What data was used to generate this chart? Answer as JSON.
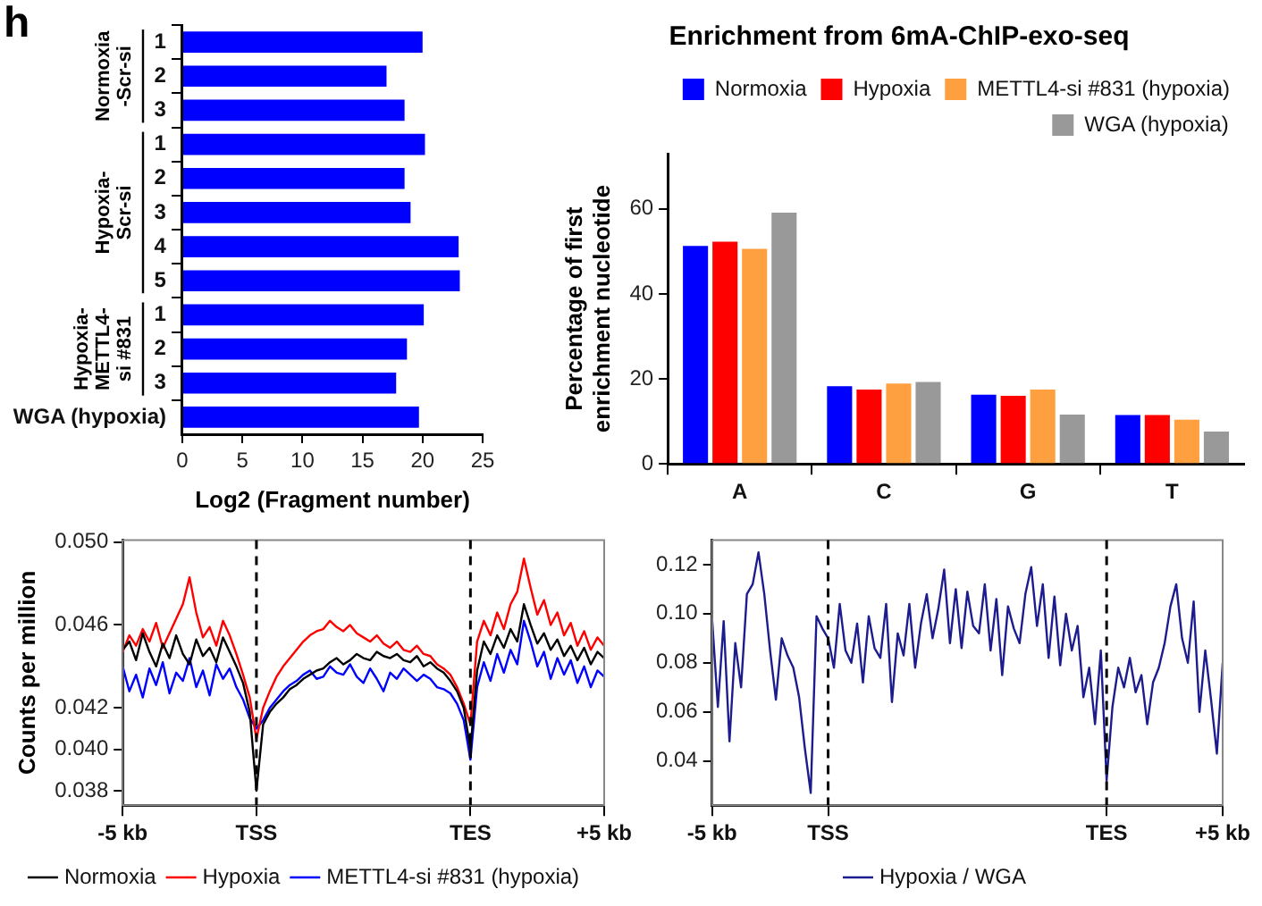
{
  "chart_data": [
    {
      "type": "bar",
      "orientation": "horizontal",
      "categories": [
        "1",
        "2",
        "3",
        "1",
        "2",
        "3",
        "4",
        "5",
        "1",
        "2",
        "3",
        "WGA (hypoxia)"
      ],
      "values": [
        20.0,
        17.0,
        18.5,
        20.2,
        18.5,
        19.0,
        23.0,
        23.1,
        20.1,
        18.7,
        17.8,
        19.7
      ],
      "color": "#0000ff",
      "xlabel": "Log2 (Fragment number)",
      "xlim": [
        0,
        25
      ],
      "xticks": [
        0,
        5,
        10,
        15,
        20,
        25
      ],
      "annotations": [
        "h",
        "Normoxia -Scr-si",
        "Hypoxia-Scr-si",
        "Hypoxia-METTL4-si #831"
      ]
    },
    {
      "type": "bar",
      "title": "Enrichment from 6mA-ChIP-exo-seq",
      "ylabel": "Percentage of first enrichment nucleotide",
      "categories": [
        "A",
        "C",
        "G",
        "T"
      ],
      "series": [
        {
          "name": "Normoxia",
          "color": "#0000ff",
          "values": [
            51.3,
            18.3,
            16.3,
            11.5
          ]
        },
        {
          "name": "Hypoxia",
          "color": "#ff0000",
          "values": [
            52.3,
            17.5,
            16.0,
            11.5
          ]
        },
        {
          "name": "METTL4-si #831 (hypoxia)",
          "color": "#ffa040",
          "values": [
            50.6,
            18.9,
            17.5,
            10.4
          ]
        },
        {
          "name": "WGA (hypoxia)",
          "color": "#999999",
          "values": [
            59.1,
            19.3,
            11.6,
            7.6
          ]
        }
      ],
      "ylim": [
        0,
        73
      ],
      "yticks": [
        0,
        20,
        40,
        60
      ],
      "legend": "top right"
    },
    {
      "type": "line",
      "ylabel": "Counts per million",
      "categories": [
        "-5 kb",
        null,
        null,
        null,
        null,
        null,
        null,
        null,
        null,
        null,
        null,
        null,
        null,
        null,
        null,
        null,
        null,
        null,
        null,
        null,
        "TSS",
        null,
        null,
        null,
        null,
        null,
        null,
        null,
        null,
        null,
        null,
        null,
        null,
        null,
        null,
        null,
        null,
        null,
        null,
        null,
        null,
        null,
        null,
        null,
        null,
        null,
        null,
        null,
        null,
        null,
        null,
        null,
        "TES",
        null,
        null,
        null,
        null,
        null,
        null,
        null,
        null,
        null,
        null,
        null,
        null,
        null,
        null,
        null,
        null,
        null,
        null,
        null,
        "+5 kb"
      ],
      "series": [
        {
          "name": "Normoxia",
          "color": "#000000",
          "values": [
            0.0448,
            0.0452,
            0.0443,
            0.0456,
            0.0447,
            0.044,
            0.0451,
            0.0444,
            0.0455,
            0.0446,
            0.0441,
            0.0453,
            0.0445,
            0.0449,
            0.0442,
            0.0454,
            0.0447,
            0.044,
            0.0432,
            0.0418,
            0.038,
            0.0412,
            0.0418,
            0.0422,
            0.0425,
            0.0429,
            0.0431,
            0.0434,
            0.0436,
            0.0438,
            0.0439,
            0.0442,
            0.0444,
            0.0441,
            0.0443,
            0.0446,
            0.0444,
            0.0443,
            0.0447,
            0.0445,
            0.0444,
            0.0446,
            0.0443,
            0.0442,
            0.0445,
            0.044,
            0.0442,
            0.0439,
            0.0437,
            0.0433,
            0.0428,
            0.042,
            0.04,
            0.0438,
            0.0452,
            0.0446,
            0.0455,
            0.0449,
            0.0458,
            0.0452,
            0.047,
            0.046,
            0.0451,
            0.0456,
            0.0448,
            0.0453,
            0.0445,
            0.045,
            0.0443,
            0.0449,
            0.0441,
            0.0447,
            0.0444
          ]
        },
        {
          "name": "Hypoxia",
          "color": "#ff0000",
          "values": [
            0.0447,
            0.0455,
            0.045,
            0.0458,
            0.0452,
            0.0461,
            0.0449,
            0.0456,
            0.0463,
            0.047,
            0.0483,
            0.0466,
            0.0454,
            0.0459,
            0.045,
            0.0462,
            0.0455,
            0.0446,
            0.0436,
            0.0425,
            0.0405,
            0.042,
            0.0428,
            0.0435,
            0.044,
            0.0444,
            0.0448,
            0.0452,
            0.0455,
            0.0457,
            0.0458,
            0.0462,
            0.0459,
            0.0457,
            0.046,
            0.0456,
            0.0454,
            0.0452,
            0.0455,
            0.0451,
            0.0449,
            0.0452,
            0.0448,
            0.0447,
            0.045,
            0.0446,
            0.0445,
            0.0441,
            0.0439,
            0.0436,
            0.043,
            0.0422,
            0.0412,
            0.0452,
            0.0462,
            0.0455,
            0.0466,
            0.0458,
            0.047,
            0.0476,
            0.0492,
            0.0478,
            0.0465,
            0.0472,
            0.046,
            0.0466,
            0.0455,
            0.0461,
            0.045,
            0.0457,
            0.0448,
            0.0454,
            0.045
          ]
        },
        {
          "name": "METTL4-si #831 (hypoxia)",
          "color": "#0000ff",
          "values": [
            0.044,
            0.0428,
            0.0436,
            0.0425,
            0.0439,
            0.0431,
            0.0442,
            0.0427,
            0.0437,
            0.0433,
            0.0444,
            0.043,
            0.0438,
            0.0426,
            0.0441,
            0.0434,
            0.0439,
            0.043,
            0.0424,
            0.0415,
            0.041,
            0.0414,
            0.042,
            0.0424,
            0.0428,
            0.0431,
            0.0433,
            0.0436,
            0.0438,
            0.0434,
            0.0435,
            0.044,
            0.0437,
            0.0436,
            0.0441,
            0.0435,
            0.0432,
            0.0439,
            0.0434,
            0.0428,
            0.0437,
            0.0434,
            0.0439,
            0.0436,
            0.0433,
            0.0436,
            0.0434,
            0.043,
            0.0429,
            0.0427,
            0.0422,
            0.0414,
            0.0395,
            0.043,
            0.0442,
            0.0433,
            0.0446,
            0.0437,
            0.0448,
            0.0441,
            0.0462,
            0.0452,
            0.044,
            0.0447,
            0.0434,
            0.0444,
            0.0436,
            0.0443,
            0.0432,
            0.044,
            0.043,
            0.0438,
            0.0435
          ]
        }
      ],
      "ylim": [
        0.0373,
        0.0501
      ],
      "yticks": [
        {
          "value": 0.05,
          "label": "0.050"
        },
        0.046,
        0.042,
        {
          "value": 0.04,
          "label": "0.040"
        },
        0.038
      ],
      "ref_lines": [
        {
          "axis": "x",
          "value": "TSS",
          "line_style": "dashed"
        },
        {
          "axis": "x",
          "value": "TES",
          "line_style": "dashed"
        }
      ],
      "legend": "bottom",
      "marker": "none"
    },
    {
      "type": "line",
      "categories": [
        "-5 kb",
        null,
        null,
        null,
        null,
        null,
        null,
        null,
        null,
        null,
        null,
        null,
        null,
        null,
        null,
        null,
        null,
        null,
        null,
        null,
        "TSS",
        null,
        null,
        null,
        null,
        null,
        null,
        null,
        null,
        null,
        null,
        null,
        null,
        null,
        null,
        null,
        null,
        null,
        null,
        null,
        null,
        null,
        null,
        null,
        null,
        null,
        null,
        null,
        null,
        null,
        null,
        null,
        null,
        null,
        null,
        null,
        null,
        null,
        null,
        null,
        null,
        null,
        null,
        null,
        null,
        null,
        null,
        null,
        "TES",
        null,
        null,
        null,
        null,
        null,
        null,
        null,
        null,
        null,
        null,
        null,
        null,
        null,
        null,
        null,
        null,
        null,
        null,
        null,
        "+5 kb"
      ],
      "series": [
        {
          "name": "Hypoxia / WGA",
          "color": "#1c1c8f",
          "values": [
            0.098,
            0.062,
            0.097,
            0.048,
            0.088,
            0.07,
            0.108,
            0.112,
            0.125,
            0.108,
            0.085,
            0.065,
            0.09,
            0.083,
            0.078,
            0.066,
            0.045,
            0.027,
            0.099,
            0.094,
            0.09,
            0.078,
            0.104,
            0.085,
            0.08,
            0.096,
            0.072,
            0.099,
            0.086,
            0.082,
            0.104,
            0.064,
            0.092,
            0.083,
            0.104,
            0.078,
            0.096,
            0.108,
            0.09,
            0.102,
            0.118,
            0.088,
            0.11,
            0.086,
            0.109,
            0.095,
            0.092,
            0.112,
            0.085,
            0.106,
            0.075,
            0.103,
            0.094,
            0.088,
            0.108,
            0.119,
            0.095,
            0.112,
            0.082,
            0.107,
            0.079,
            0.1,
            0.085,
            0.095,
            0.066,
            0.078,
            0.055,
            0.085,
            0.032,
            0.062,
            0.078,
            0.07,
            0.082,
            0.068,
            0.075,
            0.055,
            0.072,
            0.078,
            0.088,
            0.103,
            0.112,
            0.09,
            0.08,
            0.105,
            0.06,
            0.085,
            0.065,
            0.043,
            0.08
          ]
        }
      ],
      "ylim": [
        0.022,
        0.13
      ],
      "yticks": [
        0.04,
        0.06,
        0.08,
        {
          "value": 0.1,
          "label": "0.10"
        },
        0.12
      ],
      "ref_lines": [
        {
          "axis": "x",
          "value": "TSS",
          "line_style": "dashed"
        },
        {
          "axis": "x",
          "value": "TES",
          "line_style": "dashed"
        }
      ],
      "legend": "bottom",
      "marker": "none"
    }
  ]
}
